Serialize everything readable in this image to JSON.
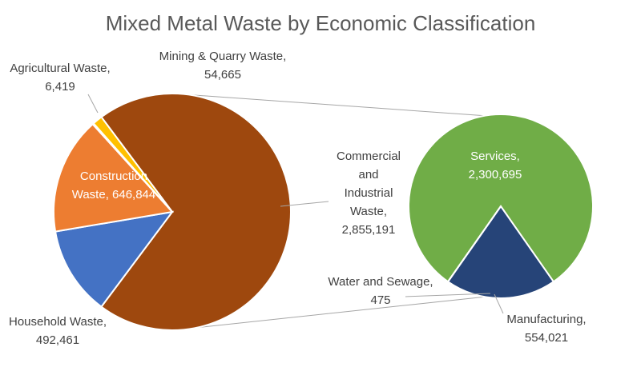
{
  "chart_data": {
    "type": "pie",
    "subtype": "pie-of-pie",
    "title": "Mixed Metal Waste by Economic Classification",
    "primary": {
      "slices": [
        {
          "name": "Commercial and Industrial Waste",
          "value": 2855191,
          "label_lines": [
            "Commercial",
            "and",
            "Industrial",
            "Waste,",
            "2,855,191"
          ],
          "color": "#9E480E"
        },
        {
          "name": "Household Waste",
          "value": 492461,
          "label_lines": [
            "Household Waste,",
            "492,461"
          ],
          "color": "#4472C4"
        },
        {
          "name": "Construction Waste",
          "value": 646844,
          "label_lines": [
            "Construction",
            "Waste, 646,844"
          ],
          "color": "#ED7D31"
        },
        {
          "name": "Agricultural Waste",
          "value": 6419,
          "label_lines": [
            "Agricultural Waste,",
            "6,419"
          ],
          "color": "#A5A5A5"
        },
        {
          "name": "Mining & Quarry Waste",
          "value": 54665,
          "label_lines": [
            "Mining & Quarry Waste,",
            "54,665"
          ],
          "color": "#FFC000"
        }
      ]
    },
    "secondary": {
      "parent": "Commercial and Industrial Waste",
      "slices": [
        {
          "name": "Services",
          "value": 2300695,
          "label_lines": [
            "Services,",
            "2,300,695"
          ],
          "color": "#70AD47"
        },
        {
          "name": "Manufacturing",
          "value": 554021,
          "label_lines": [
            "Manufacturing,",
            "554,021"
          ],
          "color": "#264478"
        },
        {
          "name": "Water and Sewage",
          "value": 475,
          "label_lines": [
            "Water and Sewage,",
            "475"
          ],
          "color": "#43682B"
        }
      ]
    }
  }
}
